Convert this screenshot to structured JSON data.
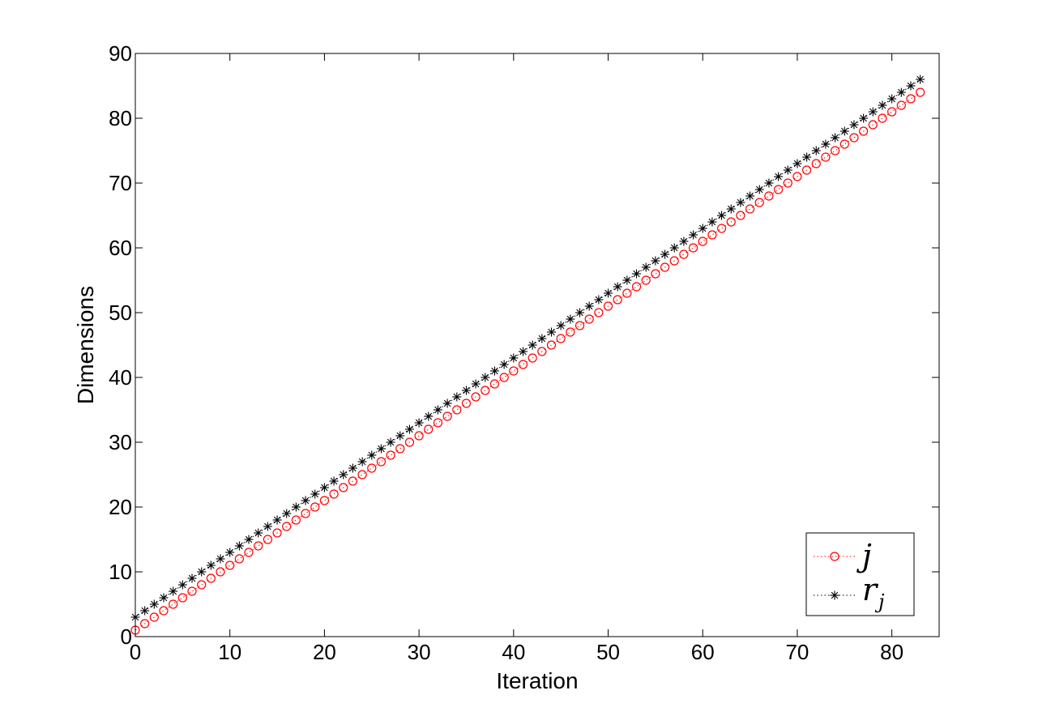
{
  "chart_data": {
    "type": "scatter",
    "xlabel": "Iteration",
    "ylabel": "Dimensions",
    "xlim": [
      0,
      85
    ],
    "ylim": [
      0,
      90
    ],
    "xticks": [
      0,
      10,
      20,
      30,
      40,
      50,
      60,
      70,
      80
    ],
    "yticks": [
      0,
      10,
      20,
      30,
      40,
      50,
      60,
      70,
      80,
      90
    ],
    "grid": false,
    "legend_position": "bottom-right",
    "series": [
      {
        "name": "j",
        "color": "#ff0000",
        "marker": "circle",
        "line": "dotted",
        "x": [
          0,
          1,
          2,
          3,
          4,
          5,
          6,
          7,
          8,
          9,
          10,
          11,
          12,
          13,
          14,
          15,
          16,
          17,
          18,
          19,
          20,
          21,
          22,
          23,
          24,
          25,
          26,
          27,
          28,
          29,
          30,
          31,
          32,
          33,
          34,
          35,
          36,
          37,
          38,
          39,
          40,
          41,
          42,
          43,
          44,
          45,
          46,
          47,
          48,
          49,
          50,
          51,
          52,
          53,
          54,
          55,
          56,
          57,
          58,
          59,
          60,
          61,
          62,
          63,
          64,
          65,
          66,
          67,
          68,
          69,
          70,
          71,
          72,
          73,
          74,
          75,
          76,
          77,
          78,
          79,
          80,
          81,
          82,
          83
        ],
        "y": [
          1,
          2,
          3,
          4,
          5,
          6,
          7,
          8,
          9,
          10,
          11,
          12,
          13,
          14,
          15,
          16,
          17,
          18,
          19,
          20,
          21,
          22,
          23,
          24,
          25,
          26,
          27,
          28,
          29,
          30,
          31,
          32,
          33,
          34,
          35,
          36,
          37,
          38,
          39,
          40,
          41,
          42,
          43,
          44,
          45,
          46,
          47,
          48,
          49,
          50,
          51,
          52,
          53,
          54,
          55,
          56,
          57,
          58,
          59,
          60,
          61,
          62,
          63,
          64,
          65,
          66,
          67,
          68,
          69,
          70,
          71,
          72,
          73,
          74,
          75,
          76,
          77,
          78,
          79,
          80,
          81,
          82,
          83,
          84
        ]
      },
      {
        "name": "r",
        "name_subscript": "j",
        "color": "#000000",
        "marker": "asterisk",
        "line": "dotted",
        "x": [
          0,
          1,
          2,
          3,
          4,
          5,
          6,
          7,
          8,
          9,
          10,
          11,
          12,
          13,
          14,
          15,
          16,
          17,
          18,
          19,
          20,
          21,
          22,
          23,
          24,
          25,
          26,
          27,
          28,
          29,
          30,
          31,
          32,
          33,
          34,
          35,
          36,
          37,
          38,
          39,
          40,
          41,
          42,
          43,
          44,
          45,
          46,
          47,
          48,
          49,
          50,
          51,
          52,
          53,
          54,
          55,
          56,
          57,
          58,
          59,
          60,
          61,
          62,
          63,
          64,
          65,
          66,
          67,
          68,
          69,
          70,
          71,
          72,
          73,
          74,
          75,
          76,
          77,
          78,
          79,
          80,
          81,
          82,
          83
        ],
        "y": [
          3,
          4,
          5,
          6,
          7,
          8,
          9,
          10,
          11,
          12,
          13,
          14,
          15,
          16,
          17,
          18,
          19,
          20,
          21,
          22,
          23,
          24,
          25,
          26,
          27,
          28,
          29,
          30,
          31,
          32,
          33,
          34,
          35,
          36,
          37,
          38,
          39,
          40,
          41,
          42,
          43,
          44,
          45,
          46,
          47,
          48,
          49,
          50,
          51,
          52,
          53,
          54,
          55,
          56,
          57,
          58,
          59,
          60,
          61,
          62,
          63,
          64,
          65,
          66,
          67,
          68,
          69,
          70,
          71,
          72,
          73,
          74,
          75,
          76,
          77,
          78,
          79,
          80,
          81,
          82,
          83,
          84,
          85,
          86
        ]
      }
    ]
  }
}
